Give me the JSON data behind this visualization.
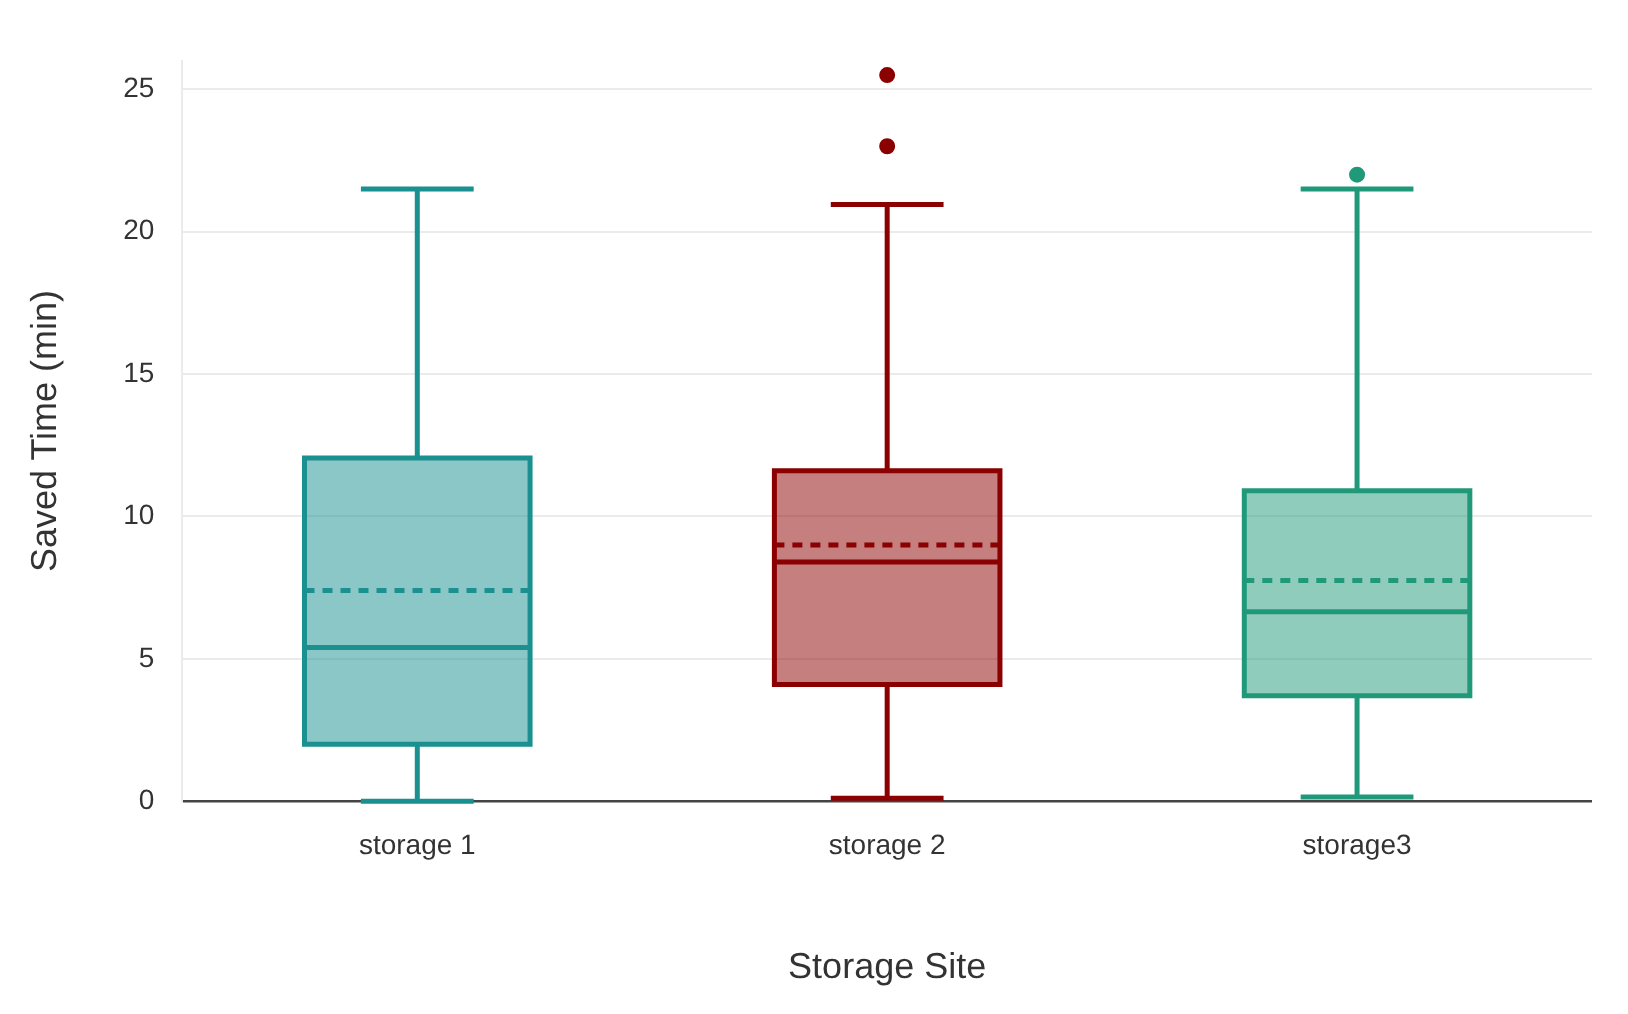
{
  "chart_data": {
    "type": "box",
    "xlabel": "Storage Site",
    "ylabel": "Saved Time (min)",
    "categories": [
      "storage 1",
      "storage 2",
      "storage3"
    ],
    "colors": [
      "#1a9090",
      "#8b0000",
      "#20997a"
    ],
    "boxes": [
      {
        "low": 0,
        "q1": 2.0,
        "median": 5.4,
        "q3": 12.05,
        "high": 21.5,
        "mean": 7.4
      },
      {
        "low": 0.1,
        "q1": 4.1,
        "median": 8.4,
        "q3": 11.6,
        "high": 20.95,
        "mean": 9.0,
        "outliers": [
          23.0,
          25.5
        ]
      },
      {
        "low": 0.15,
        "q1": 3.7,
        "median": 6.65,
        "q3": 10.9,
        "high": 21.5,
        "mean": 7.75,
        "outliers": [
          22.0
        ]
      }
    ],
    "ylim": [
      0,
      26
    ],
    "yticks": [
      0,
      5,
      10,
      15,
      20,
      25
    ],
    "grid": "y",
    "legend": false
  }
}
